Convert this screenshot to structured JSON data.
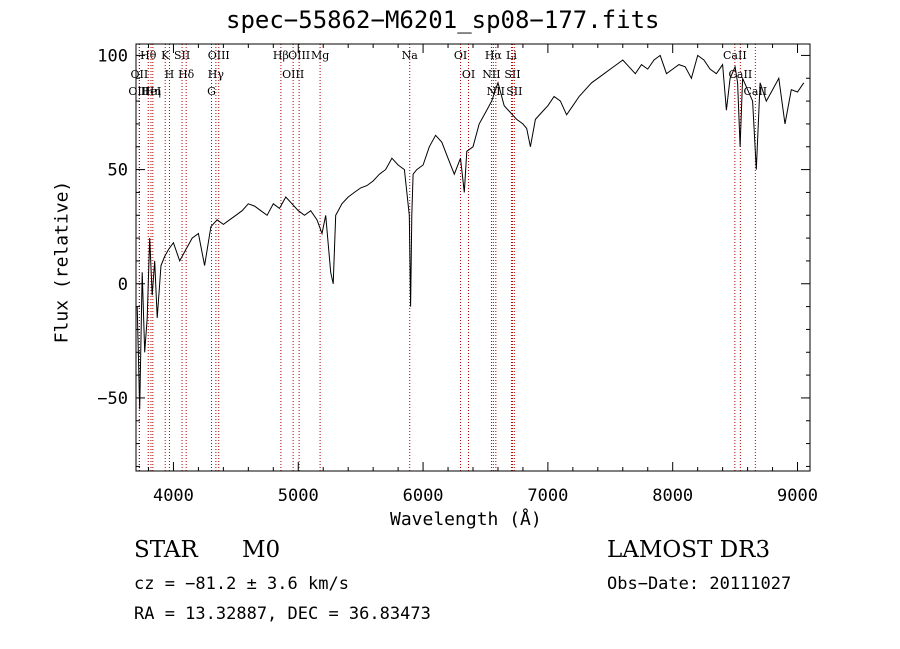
{
  "chart_data": {
    "type": "line",
    "title": "spec−55862−M6201_sp08−177.fits",
    "xlabel": "Wavelength (Å)",
    "ylabel": "Flux (relative)",
    "xlim": [
      3700,
      9100
    ],
    "ylim": [
      -82,
      105
    ],
    "xticks": [
      4000,
      5000,
      6000,
      7000,
      8000,
      9000
    ],
    "yticks": [
      -50,
      0,
      50,
      100
    ],
    "ytick_labels": [
      "−50",
      "0",
      "50",
      "100"
    ],
    "grid": false,
    "series": [
      {
        "name": "flux",
        "x": [
          3710,
          3730,
          3750,
          3770,
          3790,
          3810,
          3830,
          3850,
          3870,
          3900,
          3930,
          3960,
          4000,
          4050,
          4100,
          4150,
          4200,
          4250,
          4300,
          4350,
          4400,
          4450,
          4500,
          4550,
          4600,
          4650,
          4700,
          4750,
          4800,
          4850,
          4900,
          4950,
          5000,
          5050,
          5100,
          5150,
          5190,
          5220,
          5260,
          5280,
          5300,
          5320,
          5350,
          5400,
          5450,
          5500,
          5550,
          5600,
          5650,
          5700,
          5750,
          5800,
          5850,
          5890,
          5900,
          5910,
          5920,
          5950,
          6000,
          6050,
          6100,
          6150,
          6200,
          6250,
          6300,
          6330,
          6350,
          6400,
          6450,
          6500,
          6550,
          6580,
          6600,
          6650,
          6700,
          6750,
          6800,
          6830,
          6860,
          6900,
          6950,
          7000,
          7050,
          7100,
          7150,
          7200,
          7250,
          7300,
          7350,
          7400,
          7450,
          7500,
          7550,
          7600,
          7650,
          7700,
          7750,
          7800,
          7850,
          7900,
          7950,
          8000,
          8050,
          8100,
          8150,
          8200,
          8250,
          8300,
          8350,
          8400,
          8430,
          8460,
          8500,
          8520,
          8540,
          8560,
          8600,
          8640,
          8670,
          8700,
          8750,
          8800,
          8850,
          8900,
          8950,
          9000,
          9050
        ],
        "y": [
          -10,
          -55,
          5,
          -30,
          -15,
          20,
          -5,
          10,
          -15,
          8,
          12,
          15,
          18,
          10,
          15,
          20,
          22,
          8,
          25,
          28,
          26,
          28,
          30,
          32,
          35,
          34,
          32,
          30,
          35,
          33,
          38,
          35,
          32,
          30,
          32,
          28,
          22,
          30,
          5,
          0,
          30,
          32,
          35,
          38,
          40,
          42,
          43,
          45,
          48,
          50,
          55,
          52,
          50,
          30,
          -10,
          30,
          48,
          50,
          52,
          60,
          65,
          62,
          55,
          48,
          55,
          40,
          58,
          60,
          70,
          75,
          80,
          85,
          88,
          78,
          75,
          72,
          70,
          68,
          60,
          72,
          75,
          78,
          82,
          80,
          74,
          78,
          82,
          85,
          88,
          90,
          92,
          94,
          96,
          98,
          95,
          92,
          96,
          94,
          98,
          100,
          92,
          94,
          96,
          95,
          90,
          100,
          98,
          94,
          92,
          96,
          76,
          90,
          95,
          88,
          60,
          90,
          85,
          80,
          50,
          88,
          80,
          85,
          90,
          70,
          85,
          84,
          88
        ]
      }
    ],
    "lines": [
      {
        "label": "Hθ",
        "x": 3798
      },
      {
        "label": "OII",
        "x": 3727
      },
      {
        "label": "OIII",
        "x": 3727
      },
      {
        "label": "HeI",
        "x": 3820
      },
      {
        "label": "Hη",
        "x": 3835
      },
      {
        "label": "K",
        "x": 3934
      },
      {
        "label": "H",
        "x": 3968
      },
      {
        "label": "SII",
        "x": 4069
      },
      {
        "label": "Hδ",
        "x": 4102
      },
      {
        "label": "OIII",
        "x": 4363
      },
      {
        "label": "Hγ",
        "x": 4340
      },
      {
        "label": "G",
        "x": 4305
      },
      {
        "label": "Hβ",
        "x": 4861
      },
      {
        "label": "OIII",
        "x": 4959
      },
      {
        "label": "OIII",
        "x": 5007
      },
      {
        "label": "Mg",
        "x": 5175
      },
      {
        "label": "Na",
        "x": 5893
      },
      {
        "label": "OI",
        "x": 6300
      },
      {
        "label": "OI",
        "x": 6364
      },
      {
        "label": "Hα",
        "x": 6563
      },
      {
        "label": "NII",
        "x": 6548
      },
      {
        "label": "NII",
        "x": 6583
      },
      {
        "label": "Li",
        "x": 6708
      },
      {
        "label": "SII",
        "x": 6716
      },
      {
        "label": "SII",
        "x": 6731
      },
      {
        "label": "CaII",
        "x": 8498
      },
      {
        "label": "CaII",
        "x": 8542
      },
      {
        "label": "CaII",
        "x": 8662
      }
    ]
  },
  "info": {
    "class": "STAR",
    "subclass": "M0",
    "survey": "LAMOST DR3",
    "cz": "cz = −81.2 ± 3.6 km/s",
    "obs_date": "Obs−Date: 20111027",
    "coords": "RA =  13.32887, DEC =  36.83473"
  },
  "colors": {
    "spectrum": "#000000",
    "line_marker": "#b00000",
    "axis": "#000000"
  }
}
